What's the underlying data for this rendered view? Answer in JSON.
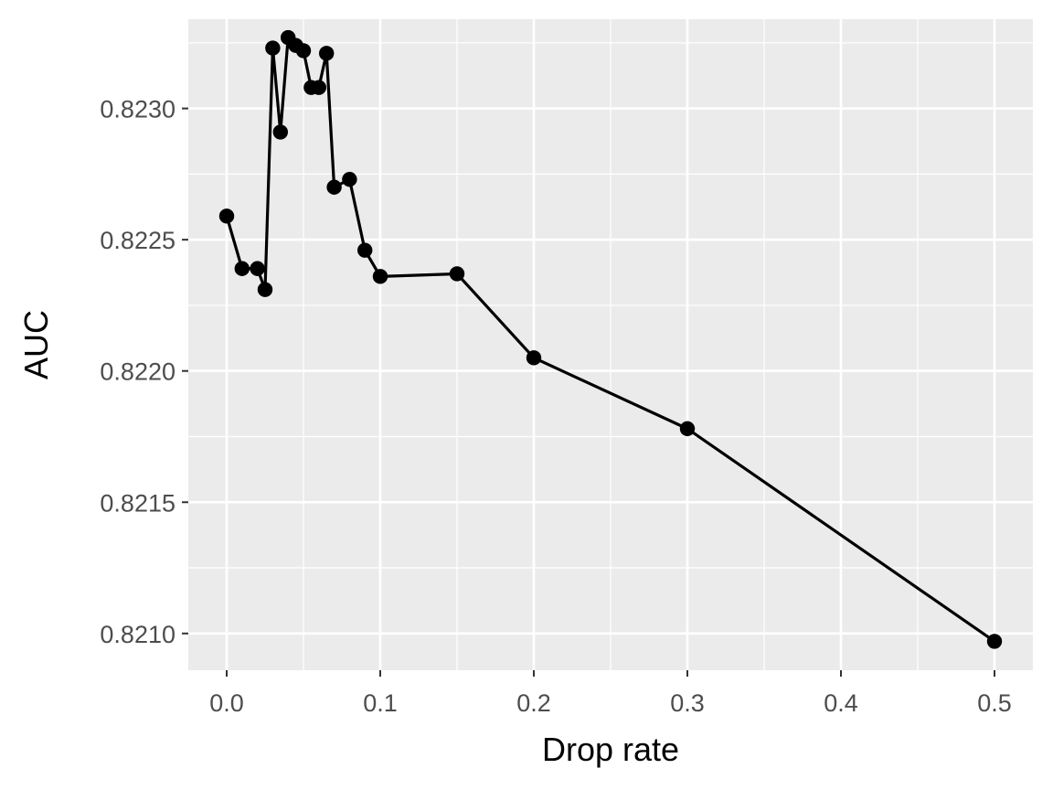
{
  "chart_data": {
    "type": "line",
    "title": "",
    "xlabel": "Drop rate",
    "ylabel": "AUC",
    "xlim": [
      -0.025,
      0.525
    ],
    "ylim": [
      0.82086,
      0.82334
    ],
    "x_ticks": [
      0.0,
      0.1,
      0.2,
      0.3,
      0.4,
      0.5
    ],
    "x_tick_labels": [
      "0.0",
      "0.1",
      "0.2",
      "0.3",
      "0.4",
      "0.5"
    ],
    "y_ticks": [
      0.821,
      0.8215,
      0.822,
      0.8225,
      0.823
    ],
    "y_tick_labels": [
      "0.8210",
      "0.8215",
      "0.8220",
      "0.8225",
      "0.8230"
    ],
    "grid": true,
    "legend": "none",
    "colors": {
      "panel": "#ebebeb",
      "grid": "#ffffff",
      "line": "#000000",
      "tick_text": "#4d4d4d"
    },
    "series": [
      {
        "x": [
          0.0,
          0.01,
          0.02,
          0.025,
          0.03,
          0.035,
          0.04,
          0.045,
          0.05,
          0.055,
          0.06,
          0.065,
          0.07,
          0.08,
          0.09,
          0.1,
          0.15,
          0.2,
          0.3,
          0.5
        ],
        "y": [
          0.82259,
          0.82239,
          0.82239,
          0.82231,
          0.82323,
          0.82291,
          0.82327,
          0.82324,
          0.82322,
          0.82308,
          0.82308,
          0.82321,
          0.8227,
          0.82273,
          0.82246,
          0.82236,
          0.82237,
          0.82205,
          0.82178,
          0.82097
        ]
      }
    ]
  }
}
